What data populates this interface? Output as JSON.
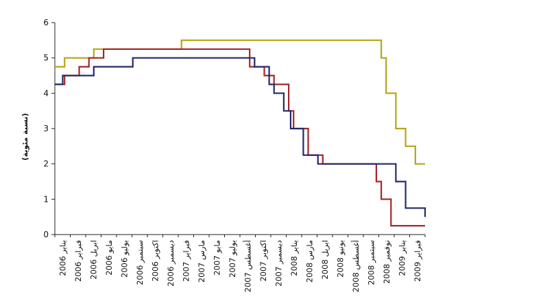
{
  "chart_data": {
    "type": "line",
    "ylabel": "(نسبة مئوية)",
    "ylim": [
      0,
      6
    ],
    "yticks": [
      "0",
      "1",
      "2",
      "3",
      "4",
      "5",
      "6"
    ],
    "xlim": [
      0,
      38
    ],
    "categories": [
      "يناير 2006",
      "فبراير 2006",
      "ابريل 2006",
      "مايو 2006",
      "يوليو 2006",
      "سبتمبر 2006",
      "اكتوبر 2006",
      "ديسمبر 2006",
      "فبراير 2007",
      "مارس 2007",
      "مايو 2007",
      "يوليو 2007",
      "أغسطس 2007",
      "اكتوبر 2007",
      "ديسمبر 2007",
      "يناير 2008",
      "مارس 2008",
      "ابريل 2008",
      "يونيو 2008",
      "أغسطس 2008",
      "سبتمبر 2008",
      "نوفمبر 2008",
      "يناير 2009",
      "فبراير 2009"
    ],
    "series": [
      {
        "color": "#b5a516",
        "points": [
          [
            0,
            4.75
          ],
          [
            1,
            4.75
          ],
          [
            1,
            5.0
          ],
          [
            4,
            5.0
          ],
          [
            4,
            5.25
          ],
          [
            13,
            5.25
          ],
          [
            13,
            5.5
          ],
          [
            33.5,
            5.5
          ],
          [
            33.5,
            5.0
          ],
          [
            34,
            5.0
          ],
          [
            34,
            4.0
          ],
          [
            35,
            4.0
          ],
          [
            35,
            3.0
          ],
          [
            36,
            3.0
          ],
          [
            36,
            2.5
          ],
          [
            37,
            2.5
          ],
          [
            37,
            2.0
          ],
          [
            38,
            2.0
          ]
        ]
      },
      {
        "color": "#a3262a",
        "points": [
          [
            0,
            4.25
          ],
          [
            1,
            4.25
          ],
          [
            1,
            4.5
          ],
          [
            2.5,
            4.5
          ],
          [
            2.5,
            4.75
          ],
          [
            3.5,
            4.75
          ],
          [
            3.5,
            5.0
          ],
          [
            5,
            5.0
          ],
          [
            5,
            5.25
          ],
          [
            20,
            5.25
          ],
          [
            20,
            4.75
          ],
          [
            21.5,
            4.75
          ],
          [
            21.5,
            4.5
          ],
          [
            22.5,
            4.5
          ],
          [
            22.5,
            4.25
          ],
          [
            24,
            4.25
          ],
          [
            24,
            3.5
          ],
          [
            24.5,
            3.5
          ],
          [
            24.5,
            3.0
          ],
          [
            26,
            3.0
          ],
          [
            26,
            2.25
          ],
          [
            27.5,
            2.25
          ],
          [
            27.5,
            2.0
          ],
          [
            33,
            2.0
          ],
          [
            33,
            1.5
          ],
          [
            33.5,
            1.5
          ],
          [
            33.5,
            1.0
          ],
          [
            34.5,
            1.0
          ],
          [
            34.5,
            0.25
          ],
          [
            38,
            0.25
          ]
        ]
      },
      {
        "color": "#222a6b",
        "points": [
          [
            0,
            4.25
          ],
          [
            0.8,
            4.25
          ],
          [
            0.8,
            4.5
          ],
          [
            4,
            4.5
          ],
          [
            4,
            4.75
          ],
          [
            8,
            4.75
          ],
          [
            8,
            5.0
          ],
          [
            20.5,
            5.0
          ],
          [
            20.5,
            4.75
          ],
          [
            22,
            4.75
          ],
          [
            22,
            4.25
          ],
          [
            22.5,
            4.25
          ],
          [
            22.5,
            4.0
          ],
          [
            23.5,
            4.0
          ],
          [
            23.5,
            3.5
          ],
          [
            24.2,
            3.5
          ],
          [
            24.2,
            3.0
          ],
          [
            25.5,
            3.0
          ],
          [
            25.5,
            2.25
          ],
          [
            27,
            2.25
          ],
          [
            27,
            2.0
          ],
          [
            35,
            2.0
          ],
          [
            35,
            1.5
          ],
          [
            36,
            1.5
          ],
          [
            36,
            0.75
          ],
          [
            38,
            0.75
          ],
          [
            38,
            0.5
          ]
        ]
      }
    ]
  }
}
